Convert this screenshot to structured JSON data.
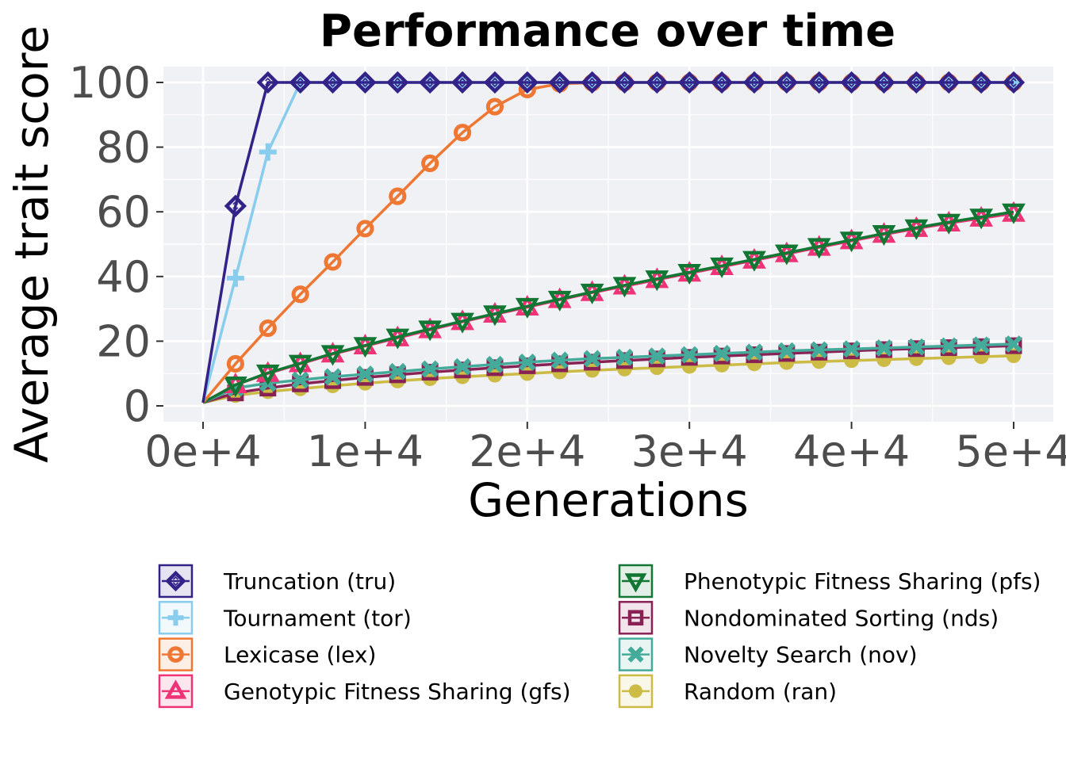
{
  "chart_data": {
    "type": "line",
    "title": "Performance over time",
    "xlabel": "Generations",
    "ylabel": "Average trait score",
    "xlim": [
      0,
      50000
    ],
    "ylim": [
      0,
      100
    ],
    "xticks": [
      0,
      10000,
      20000,
      30000,
      40000,
      50000
    ],
    "xtick_labels": [
      "0e+4",
      "1e+4",
      "2e+4",
      "3e+4",
      "4e+4",
      "5e+4"
    ],
    "yticks": [
      0,
      20,
      40,
      60,
      80,
      100
    ],
    "ytick_labels": [
      "0",
      "20",
      "40",
      "60",
      "80",
      "100"
    ],
    "grid": true,
    "legend_position": "bottom",
    "x": [
      0,
      2000,
      4000,
      6000,
      8000,
      10000,
      12000,
      14000,
      16000,
      18000,
      20000,
      22000,
      24000,
      26000,
      28000,
      30000,
      32000,
      34000,
      36000,
      38000,
      40000,
      42000,
      44000,
      46000,
      48000,
      50000
    ],
    "series": [
      {
        "name": "Truncation (tru)",
        "color": "#332288",
        "marker": "diamond",
        "values": [
          1,
          61.8,
          100,
          100,
          100,
          100,
          100,
          100,
          100,
          100,
          100,
          100,
          100,
          100,
          100,
          100,
          100,
          100,
          100,
          100,
          100,
          100,
          100,
          100,
          100,
          100
        ]
      },
      {
        "name": "Tournament (tor)",
        "color": "#88CCEE",
        "marker": "plus",
        "values": [
          1,
          39.5,
          78.5,
          100,
          100,
          100,
          100,
          100,
          100,
          100,
          100,
          100,
          100,
          100,
          100,
          100,
          100,
          100,
          100,
          100,
          100,
          100,
          100,
          100,
          100,
          100
        ]
      },
      {
        "name": "Lexicase (lex)",
        "color": "#EE7733",
        "marker": "circle-open",
        "values": [
          1,
          13,
          24,
          34.5,
          44.5,
          54.8,
          64.8,
          75,
          84.5,
          92.5,
          97.8,
          99.6,
          99.9,
          100,
          100,
          100,
          100,
          100,
          100,
          100,
          100,
          100,
          100,
          100,
          100,
          100
        ]
      },
      {
        "name": "Genotypic Fitness Sharing (gfs)",
        "color": "#EE3377",
        "marker": "triangle",
        "values": [
          1,
          6.5,
          10,
          13,
          16,
          18.5,
          21,
          23.5,
          26,
          28.3,
          30.5,
          32.8,
          35,
          37,
          39,
          41,
          43,
          45,
          47,
          49,
          51,
          53,
          54.8,
          56.5,
          58,
          59.5
        ]
      },
      {
        "name": "Phenotypic Fitness Sharing (pfs)",
        "color": "#117733",
        "marker": "triangle-down",
        "values": [
          1,
          6.5,
          10.2,
          13.2,
          16.2,
          18.7,
          21.3,
          23.8,
          26.2,
          28.5,
          30.8,
          33,
          35.2,
          37.3,
          39.3,
          41.3,
          43.3,
          45.3,
          47.3,
          49.3,
          51.3,
          53.3,
          55.1,
          56.8,
          58.4,
          60
        ]
      },
      {
        "name": "Nondominated Sorting (nds)",
        "color": "#882255",
        "marker": "square",
        "values": [
          1,
          4,
          5.5,
          6.8,
          7.8,
          8.8,
          9.6,
          10.4,
          11.1,
          11.8,
          12.4,
          13,
          13.5,
          14,
          14.5,
          15,
          15.4,
          15.8,
          16.2,
          16.6,
          17,
          17.4,
          17.7,
          18,
          18.3,
          18.6
        ]
      },
      {
        "name": "Novelty Search (nov)",
        "color": "#44AA99",
        "marker": "x",
        "values": [
          1,
          5.5,
          7,
          8,
          9,
          9.8,
          10.6,
          11.4,
          12.1,
          12.8,
          13.5,
          14.1,
          14.6,
          15,
          15.4,
          15.8,
          16.2,
          16.6,
          17,
          17.3,
          17.6,
          17.9,
          18.2,
          18.5,
          18.8,
          19.1
        ]
      },
      {
        "name": "Random (ran)",
        "color": "#CCBB44",
        "marker": "circle-filled",
        "values": [
          1,
          3.2,
          4.4,
          5.3,
          6.2,
          7,
          7.7,
          8.4,
          9,
          9.5,
          10,
          10.5,
          11,
          11.4,
          11.8,
          12.2,
          12.6,
          13,
          13.4,
          13.7,
          14,
          14.3,
          14.6,
          14.9,
          15.2,
          15.5
        ]
      }
    ]
  }
}
